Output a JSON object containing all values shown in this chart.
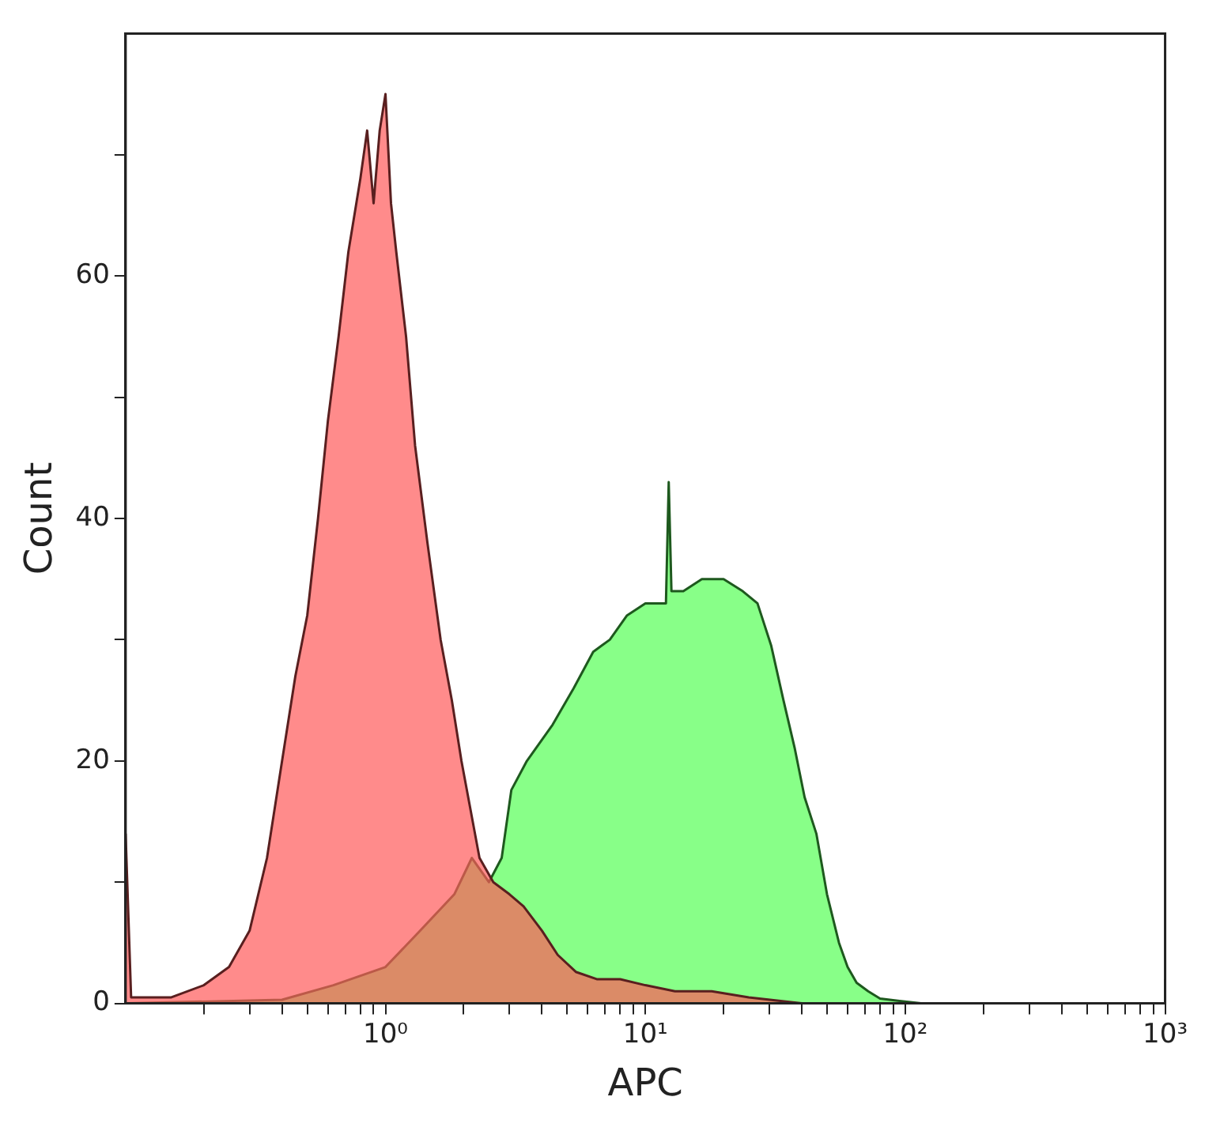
{
  "chart_data": {
    "type": "area",
    "xlabel": "APC",
    "ylabel": "Count",
    "log": "x",
    "grid": false,
    "legend": false,
    "marker": "none",
    "xlim": [
      0.1,
      1000
    ],
    "ylim": [
      0,
      80
    ],
    "xticks": [
      {
        "value": 0.2,
        "label": null
      },
      {
        "value": 0.3,
        "label": null
      },
      {
        "value": 0.4,
        "label": null
      },
      {
        "value": 0.5,
        "label": null
      },
      {
        "value": 0.6,
        "label": null
      },
      {
        "value": 0.7,
        "label": null
      },
      {
        "value": 0.8,
        "label": null
      },
      {
        "value": 0.9,
        "label": null
      },
      {
        "value": 1,
        "label": "10⁰"
      },
      {
        "value": 2,
        "label": null
      },
      {
        "value": 3,
        "label": null
      },
      {
        "value": 4,
        "label": null
      },
      {
        "value": 5,
        "label": null
      },
      {
        "value": 6,
        "label": null
      },
      {
        "value": 7,
        "label": null
      },
      {
        "value": 8,
        "label": null
      },
      {
        "value": 9,
        "label": null
      },
      {
        "value": 10,
        "label": "10¹"
      },
      {
        "value": 20,
        "label": null
      },
      {
        "value": 30,
        "label": null
      },
      {
        "value": 40,
        "label": null
      },
      {
        "value": 50,
        "label": null
      },
      {
        "value": 60,
        "label": null
      },
      {
        "value": 70,
        "label": null
      },
      {
        "value": 80,
        "label": null
      },
      {
        "value": 90,
        "label": null
      },
      {
        "value": 100,
        "label": "10²"
      },
      {
        "value": 200,
        "label": null
      },
      {
        "value": 300,
        "label": null
      },
      {
        "value": 400,
        "label": null
      },
      {
        "value": 500,
        "label": null
      },
      {
        "value": 600,
        "label": null
      },
      {
        "value": 700,
        "label": null
      },
      {
        "value": 800,
        "label": null
      },
      {
        "value": 900,
        "label": null
      },
      {
        "value": 1000,
        "label": "10³"
      }
    ],
    "yticks": [
      0,
      {
        "value": 10,
        "label": null
      },
      20,
      {
        "value": 30,
        "label": null
      },
      40,
      {
        "value": 50,
        "label": null
      },
      60,
      {
        "value": 70,
        "label": null
      }
    ],
    "series": [
      {
        "color": "#55ff55",
        "x": [
          0.1,
          0.4,
          0.63,
          1.0,
          1.36,
          1.84,
          2.15,
          2.5,
          2.8,
          3.05,
          3.5,
          4.4,
          5.3,
          6.3,
          7.3,
          8.5,
          10,
          12,
          12.3,
          12.6,
          14,
          16.5,
          20,
          23.7,
          27,
          30.5,
          34,
          37.6,
          41,
          45.5,
          50,
          55.6,
          60,
          65,
          72,
          80,
          95,
          115,
          990,
          1000
        ],
        "values": [
          0,
          0.3,
          1.5,
          3,
          6,
          9,
          12,
          10,
          12,
          17.6,
          20,
          23,
          26,
          29,
          30,
          32,
          33,
          33,
          43,
          34,
          34,
          35,
          35,
          34,
          33,
          29.5,
          25,
          21,
          17,
          14,
          9,
          5,
          3,
          1.7,
          1,
          0.4,
          0.2,
          0,
          0,
          2
        ]
      },
      {
        "color": "#ff5a5a",
        "x": [
          0.1,
          0.105,
          0.15,
          0.2,
          0.25,
          0.3,
          0.35,
          0.4,
          0.45,
          0.5,
          0.55,
          0.6,
          0.66,
          0.72,
          0.8,
          0.85,
          0.9,
          0.95,
          1.0,
          1.05,
          1.1,
          1.2,
          1.3,
          1.45,
          1.63,
          1.8,
          1.96,
          2.3,
          2.6,
          3.0,
          3.4,
          4,
          4.6,
          5.4,
          6.5,
          8,
          10,
          13,
          18,
          25,
          40,
          1000
        ],
        "values": [
          14,
          0.5,
          0.5,
          1.5,
          3,
          6,
          12,
          20,
          27,
          32,
          40,
          48,
          55,
          62,
          68,
          72,
          66,
          72,
          75,
          66,
          62,
          55,
          46,
          38,
          30,
          25,
          20,
          12,
          10,
          9,
          8,
          6,
          4,
          2.6,
          2,
          2,
          1.5,
          1,
          1,
          0.5,
          0,
          0
        ]
      }
    ]
  }
}
